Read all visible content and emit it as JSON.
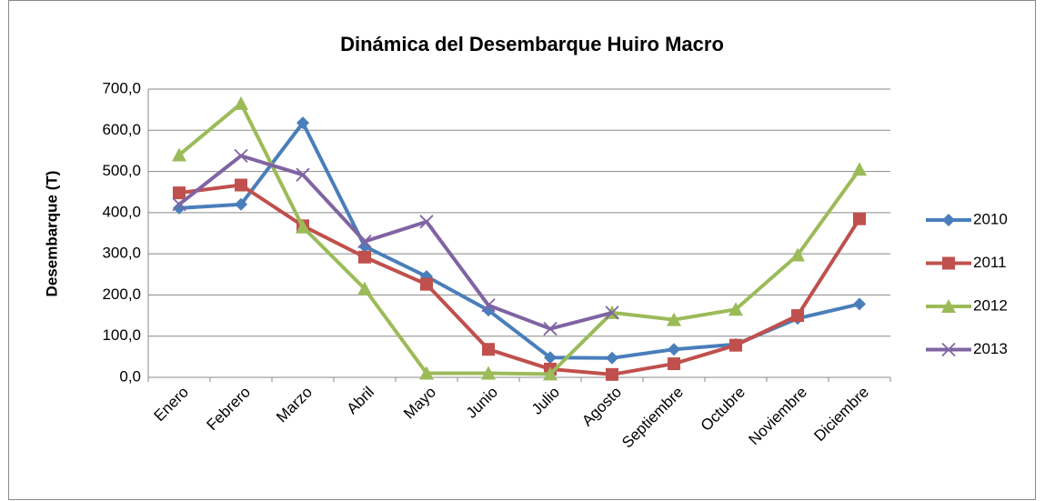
{
  "chart_data": {
    "type": "line",
    "title": "Dinámica del Desembarque Huiro Macro",
    "ylabel": "Desembarque (T)",
    "categories": [
      "Enero",
      "Febrero",
      "Marzo",
      "Abril",
      "Mayo",
      "Junio",
      "Julio",
      "Agosto",
      "Septiembre",
      "Octubre",
      "Noviembre",
      "Diciembre"
    ],
    "series": [
      {
        "name": "2010",
        "color": "#4a7ebb",
        "marker": "diamond",
        "values": [
          411,
          420,
          618,
          318,
          245,
          163,
          48,
          47,
          68,
          80,
          143,
          178
        ]
      },
      {
        "name": "2011",
        "color": "#c0504d",
        "marker": "square",
        "values": [
          448,
          467,
          368,
          292,
          226,
          68,
          20,
          7,
          33,
          78,
          150,
          385
        ]
      },
      {
        "name": "2012",
        "color": "#9bbb59",
        "marker": "triangle",
        "values": [
          540,
          665,
          365,
          215,
          10,
          10,
          8,
          157,
          140,
          165,
          297,
          505
        ]
      },
      {
        "name": "2013",
        "color": "#8064a2",
        "marker": "x",
        "values": [
          420,
          538,
          492,
          330,
          378,
          175,
          118,
          157,
          null,
          null,
          null,
          null
        ]
      }
    ],
    "ylim": [
      0,
      700
    ],
    "yticks": [
      {
        "value": 0,
        "label": "0,0"
      },
      {
        "value": 100,
        "label": "100,0"
      },
      {
        "value": 200,
        "label": "200,0"
      },
      {
        "value": 300,
        "label": "300,0"
      },
      {
        "value": 400,
        "label": "400,0"
      },
      {
        "value": 500,
        "label": "500,0"
      },
      {
        "value": 600,
        "label": "600,0"
      },
      {
        "value": 700,
        "label": "700,0"
      }
    ],
    "grid": true,
    "legend": "right"
  }
}
